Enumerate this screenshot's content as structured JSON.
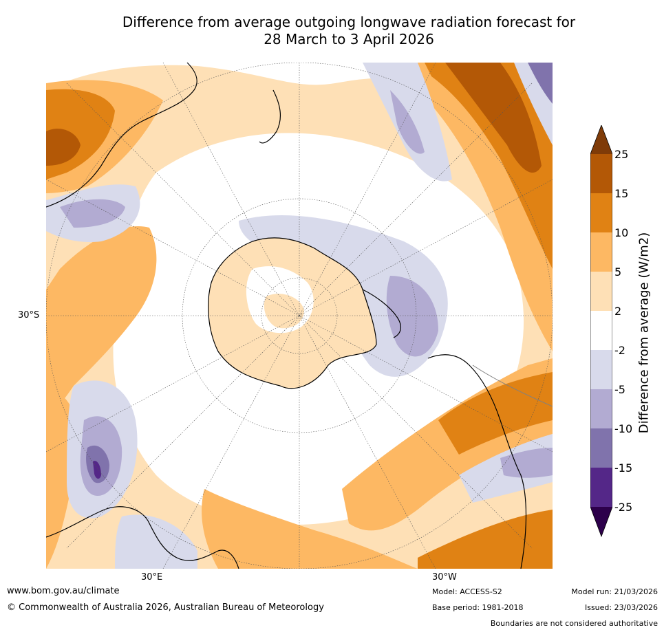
{
  "title": {
    "line1": "Difference from average outgoing longwave radiation forecast for",
    "line2": "28 March to 3 April 2026"
  },
  "map": {
    "projection": "South polar stereographic",
    "lat_label": "30°S",
    "lon_labels": [
      "30°E",
      "30°W"
    ]
  },
  "colorbar": {
    "title": "Difference from average (W/m2)",
    "ticks": [
      "25",
      "15",
      "10",
      "5",
      "2",
      "-2",
      "-5",
      "-10",
      "-15",
      "-25"
    ],
    "colors": {
      "over": "#7f3b08",
      "c15_25": "#b35806",
      "c10_15": "#e08214",
      "c5_10": "#fdb863",
      "c2_5": "#fee0b6",
      "cm2_2": "#ffffff",
      "cm5_m2": "#d8daeb",
      "cm10_m5": "#b2abd2",
      "cm15_m10": "#8073ac",
      "cm25_m15": "#542788",
      "under": "#2d004b"
    }
  },
  "footer": {
    "website": "www.bom.gov.au/climate",
    "copyright": "© Commonwealth of Australia 2026, Australian Bureau of Meteorology",
    "model": "Model: ACCESS-S2",
    "base_period": "Base period: 1981-2018",
    "model_run": "Model run: 21/03/2026",
    "issued": "Issued: 23/03/2026",
    "disclaimer": "Boundaries are not considered authoritative"
  }
}
